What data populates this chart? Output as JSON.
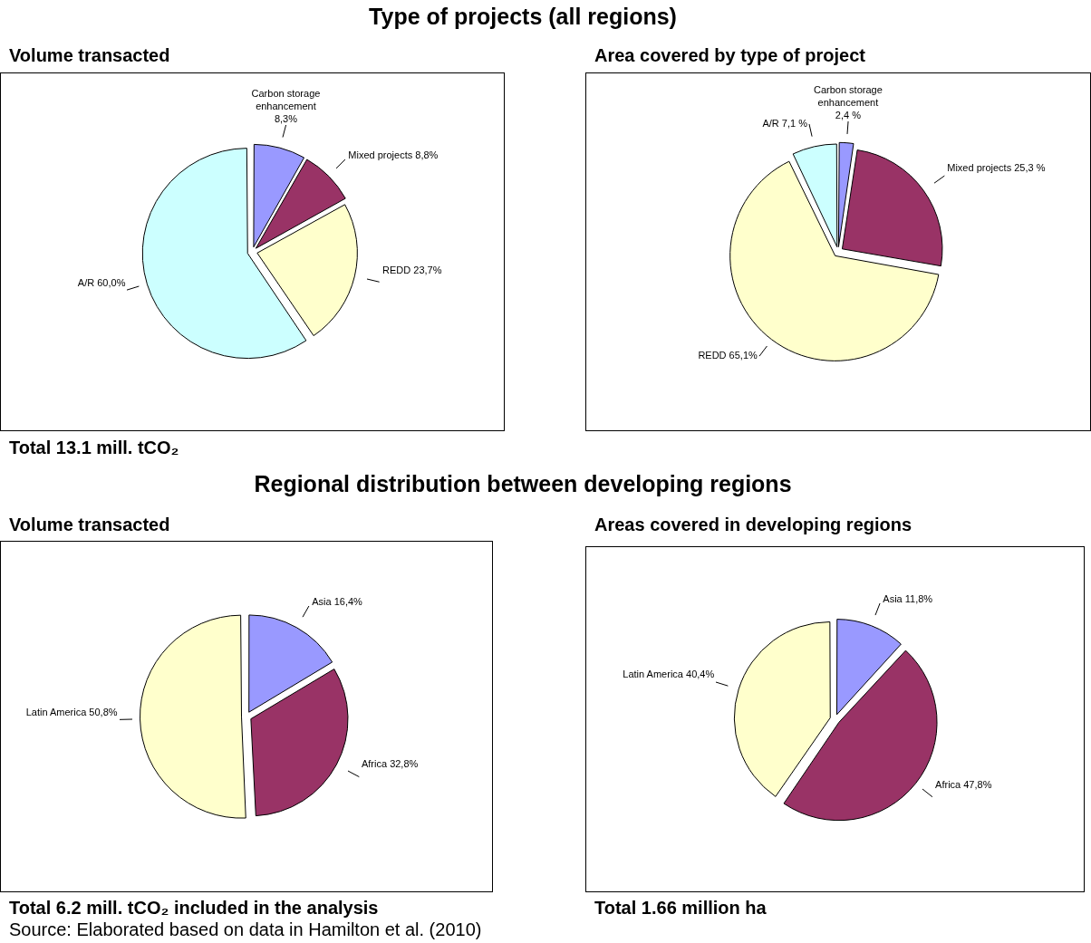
{
  "chart_data": [
    {
      "type": "pie",
      "title": "Type of projects (all regions)",
      "subtitle": "Volume transacted",
      "categories": [
        "Carbon storage enhancement",
        "Mixed projects",
        "REDD",
        "A/R"
      ],
      "values": [
        8.3,
        8.8,
        23.7,
        60.0
      ],
      "value_labels": [
        "8,3%",
        "8,8%",
        "23,7%",
        "60,0%"
      ],
      "colors": [
        "#9999ff",
        "#993366",
        "#ffffcc",
        "#ccffff"
      ],
      "legend": false,
      "annotations": [
        "Total 13.1 mill. tCO₂"
      ]
    },
    {
      "type": "pie",
      "subtitle": "Area covered by type of project",
      "categories": [
        "Carbon storage enhancement",
        "Mixed projects",
        "REDD",
        "A/R"
      ],
      "values": [
        2.4,
        25.3,
        65.1,
        7.1
      ],
      "value_labels": [
        "2,4 %",
        "25,3 %",
        "65,1%",
        "7,1 %"
      ],
      "colors": [
        "#9999ff",
        "#993366",
        "#ffffcc",
        "#ccffff"
      ],
      "legend": false
    },
    {
      "type": "pie",
      "title": "Regional distribution between developing regions",
      "subtitle": "Volume transacted",
      "categories": [
        "Asia",
        "Africa",
        "Latin America"
      ],
      "values": [
        16.4,
        32.8,
        50.8
      ],
      "value_labels": [
        "16,4%",
        "32,8%",
        "50,8%"
      ],
      "colors": [
        "#9999ff",
        "#993366",
        "#ffffcc"
      ],
      "legend": false,
      "annotations": [
        "Total 6.2 mill. tCO₂ included in the analysis",
        "Source: Elaborated based on data in Hamilton et al. (2010)"
      ]
    },
    {
      "type": "pie",
      "subtitle": "Areas covered in developing regions",
      "categories": [
        "Asia",
        "Africa",
        "Latin America"
      ],
      "values": [
        11.8,
        47.8,
        40.4
      ],
      "value_labels": [
        "11,8%",
        "47,8%",
        "40,4%"
      ],
      "colors": [
        "#9999ff",
        "#993366",
        "#ffffcc"
      ],
      "legend": false,
      "annotations": [
        "Total 1.66 million ha"
      ]
    }
  ]
}
